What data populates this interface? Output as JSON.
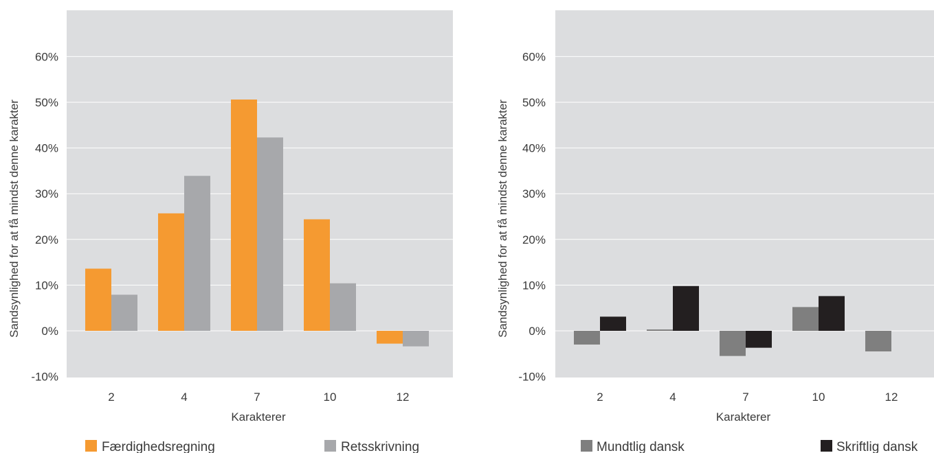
{
  "chart_data": [
    {
      "type": "bar",
      "xlabel": "Karakterer",
      "ylabel": "Sandsynlighed for at få mindst denne karakter",
      "categories": [
        "2",
        "4",
        "7",
        "10",
        "12"
      ],
      "ylim": [
        -0.1,
        0.7
      ],
      "yticks": [
        "-10%",
        "0%",
        "10%",
        "20%",
        "30%",
        "40%",
        "50%",
        "60%"
      ],
      "grid": true,
      "legend": "bottom",
      "series": [
        {
          "name": "Færdighedsregning",
          "color": "#f59a31",
          "values": [
            0.136,
            0.257,
            0.506,
            0.244,
            -0.028
          ]
        },
        {
          "name": "Retsskrivning",
          "color": "#a7a8ab",
          "values": [
            0.079,
            0.339,
            0.423,
            0.104,
            -0.034
          ]
        }
      ]
    },
    {
      "type": "bar",
      "xlabel": "Karakterer",
      "ylabel": "Sandsynlighed for at få mindst denne karakter",
      "categories": [
        "2",
        "4",
        "7",
        "10",
        "12"
      ],
      "ylim": [
        -0.1,
        0.7
      ],
      "yticks": [
        "-10%",
        "0%",
        "10%",
        "20%",
        "30%",
        "40%",
        "50%",
        "60%"
      ],
      "grid": true,
      "legend": "bottom",
      "series": [
        {
          "name": "Mundtlig dansk",
          "color": "#7f7f7f",
          "values": [
            -0.03,
            0.003,
            -0.055,
            0.052,
            -0.045
          ]
        },
        {
          "name": "Skriftlig dansk",
          "color": "#231f20",
          "values": [
            0.031,
            0.098,
            -0.037,
            0.076,
            null
          ]
        }
      ]
    }
  ]
}
